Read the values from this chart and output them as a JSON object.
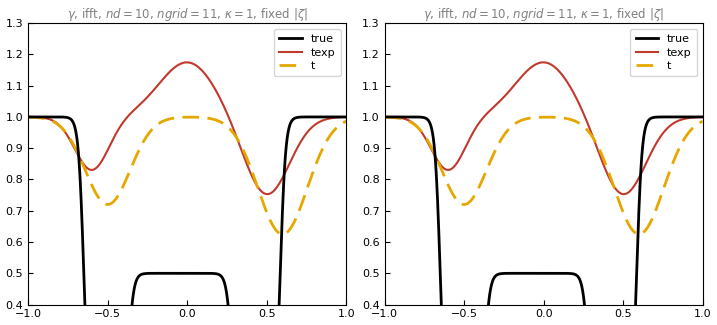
{
  "title": "$\\gamma$, ifft, $nd = 10$, $ngrid = 11$, $\\kappa = 1$, fixed $|\\zeta|$",
  "xlim": [
    -1,
    1
  ],
  "ylim": [
    0.4,
    1.3
  ],
  "yticks": [
    0.4,
    0.5,
    0.6,
    0.7,
    0.8,
    0.9,
    1.0,
    1.1,
    1.2,
    1.3
  ],
  "xticks": [
    -1,
    -0.5,
    0,
    0.5,
    1
  ],
  "true_color": "#000000",
  "texp_color": "#c0392b",
  "t_color": "#e6a800",
  "true_lw": 2.0,
  "texp_lw": 1.5,
  "t_lw": 2.0,
  "legend_labels": [
    "true",
    "texp",
    "t"
  ],
  "sigmoid_k": 60,
  "true_transitions": [
    -0.65,
    -0.37,
    0.28,
    0.585
  ],
  "texp_params": [
    0.175,
    0.0,
    0.25,
    -0.25,
    0.5,
    0.2,
    -0.17,
    -0.6,
    0.15
  ],
  "t_params": [
    -0.28,
    -0.5,
    0.2,
    -0.375,
    0.6,
    0.22
  ]
}
